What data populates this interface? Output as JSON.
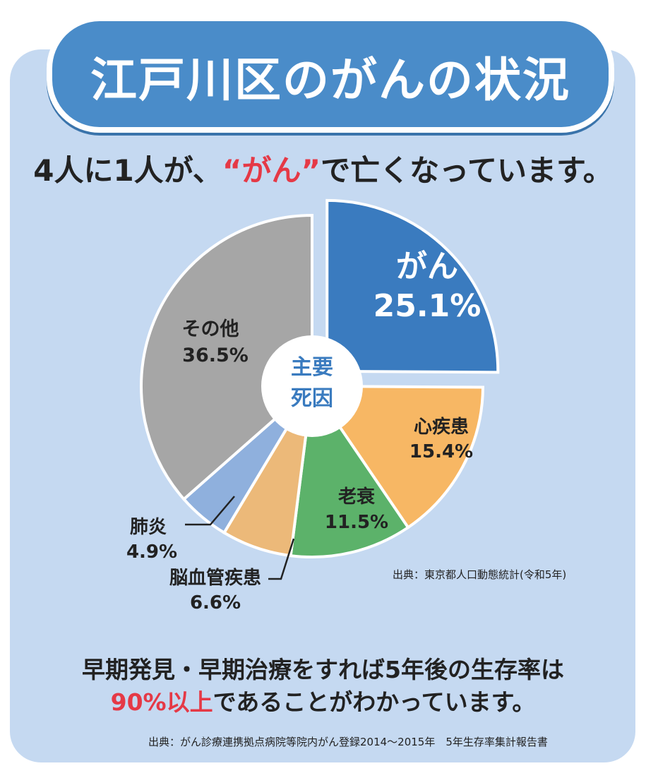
{
  "header": {
    "title": "江戸川区のがんの状況"
  },
  "headline": {
    "before": "4人に1人が、",
    "accent": "“がん”",
    "after": "で亡くなっています。"
  },
  "center_label": {
    "line1": "主要",
    "line2": "死因"
  },
  "chart_data": {
    "type": "pie",
    "title": "主要死因",
    "slices": [
      {
        "name": "がん",
        "percent_label": "25.1%",
        "value": 25.1,
        "color": "#3a7bbf"
      },
      {
        "name": "心疾患",
        "percent_label": "15.4%",
        "value": 15.4,
        "color": "#f7b764"
      },
      {
        "name": "老衰",
        "percent_label": "11.5%",
        "value": 11.5,
        "color": "#5cb26a"
      },
      {
        "name": "脳血管疾患",
        "percent_label": "6.6%",
        "value": 6.6,
        "color": "#ecb979"
      },
      {
        "name": "肺炎",
        "percent_label": "4.9%",
        "value": 4.9,
        "color": "#8fb0dd"
      },
      {
        "name": "その他",
        "percent_label": "36.5%",
        "value": 36.5,
        "color": "#a6a6a6"
      }
    ],
    "source": "出典：東京都人口動態統計(令和5年)"
  },
  "bottom_note": {
    "line1": "早期発見・早期治療をすれば5年後の生存率は",
    "line2_accent": "90%以上",
    "line2_rest": "であることがわかっています。"
  },
  "footer": {
    "source": "出典：がん診療連携拠点病院等院内がん登録2014〜2015年　5年生存率集計報告書"
  }
}
